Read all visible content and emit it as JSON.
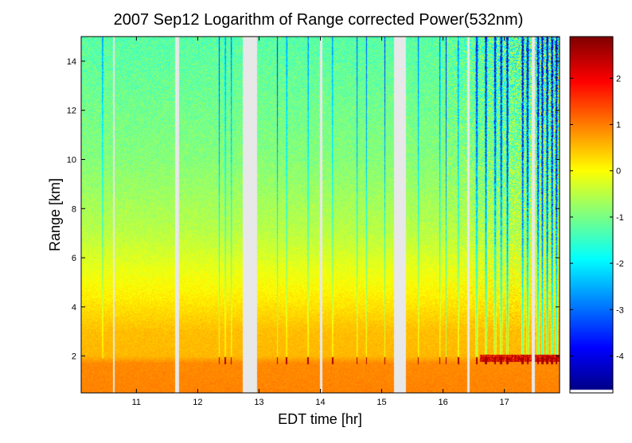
{
  "chart_data": {
    "type": "heatmap",
    "title": "2007 Sep12  Logarithm of Range corrected Power(532nm)",
    "xlabel": "EDT time [hr]",
    "ylabel": "Range [km]",
    "xlim": [
      10.1,
      17.9
    ],
    "ylim": [
      0.5,
      15
    ],
    "x_ticks": [
      11,
      12,
      13,
      14,
      15,
      16,
      17
    ],
    "x_tick_labels": [
      "11",
      "12",
      "13",
      "14",
      "15",
      "16",
      "17"
    ],
    "y_ticks": [
      2,
      4,
      6,
      8,
      10,
      12,
      14
    ],
    "y_tick_labels": [
      "2",
      "4",
      "6",
      "8",
      "10",
      "12",
      "14"
    ],
    "colorbar": {
      "colormap": "jet",
      "range": [
        -4.8,
        2.9
      ],
      "ticks": [
        -4,
        -3,
        -2,
        -1,
        0,
        1,
        2
      ],
      "tick_labels": [
        "-4",
        "-3",
        "-2",
        "-1",
        "0",
        "1",
        "2"
      ]
    },
    "data_gaps_hr": [
      [
        10.62,
        10.65
      ],
      [
        11.63,
        11.7
      ],
      [
        12.73,
        12.97
      ],
      [
        14.0,
        14.03
      ],
      [
        15.2,
        15.4
      ],
      [
        16.4,
        16.43
      ],
      [
        17.45,
        17.5
      ]
    ],
    "boundary_layer_top_km": 1.8,
    "profile_model": [
      {
        "range_km": 0.5,
        "value": 0.95
      },
      {
        "range_km": 1.7,
        "value": 0.9
      },
      {
        "range_km": 2.0,
        "value": 0.55
      },
      {
        "range_km": 3.0,
        "value": 0.5
      },
      {
        "range_km": 4.5,
        "value": 0.1
      },
      {
        "range_km": 7.0,
        "value": -0.5
      },
      {
        "range_km": 10.0,
        "value": -0.9
      },
      {
        "range_km": 15.0,
        "value": -1.25
      }
    ],
    "cloud_streaks_hr": [
      10.45,
      12.35,
      12.45,
      12.55,
      13.3,
      13.45,
      13.8,
      14.2,
      14.6,
      14.75,
      15.05,
      15.6,
      15.95,
      16.05,
      16.25,
      16.55,
      16.7,
      16.85,
      16.95,
      17.05,
      17.3,
      17.38,
      17.55,
      17.62,
      17.7,
      17.78,
      17.85
    ],
    "noise_onset_hr": 15.8
  }
}
